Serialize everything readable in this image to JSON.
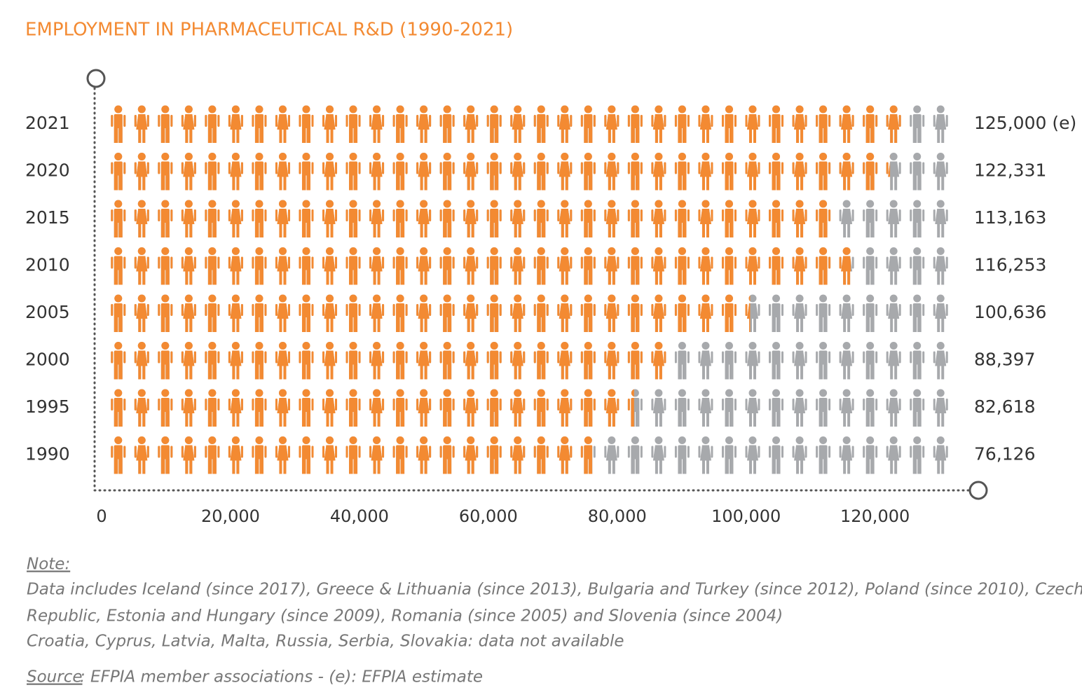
{
  "chart_data": {
    "type": "pictogram",
    "title": "EMPLOYMENT IN PHARMACEUTICAL R&D (1990-2021)",
    "categories": [
      "2021",
      "2020",
      "2015",
      "2010",
      "2005",
      "2000",
      "1995",
      "1990"
    ],
    "values": [
      125000,
      122331,
      113163,
      116253,
      100636,
      88397,
      82618,
      76126
    ],
    "value_labels": [
      "125,000 (e)",
      "122,331",
      "113,163",
      "116,253",
      "100,636",
      "88,397",
      "82,618",
      "76,126"
    ],
    "color": "#f38a32",
    "background_color": "#a7a9ac",
    "xlim": [
      0,
      132000
    ],
    "xticks": [
      0,
      {
        "value": 20000,
        "label": "20,000"
      },
      {
        "value": 40000,
        "label": "40,000"
      },
      {
        "value": 60000,
        "label": "60,000"
      },
      {
        "value": 80000,
        "label": "80,000"
      },
      {
        "value": 100000,
        "label": "100,000"
      },
      {
        "value": 120000,
        "label": "120,000"
      }
    ],
    "note_label": "Note:",
    "notes": [
      "Data includes Iceland (since 2017), Greece & Lithuania (since 2013), Bulgaria and Turkey (since 2012), Poland (since 2010), Czech",
      "Republic, Estonia and Hungary (since 2009), Romania (since 2005) and Slovenia (since 2004)",
      "Croatia, Cyprus, Latvia, Malta, Russia, Serbia, Slovakia: data not available"
    ],
    "source_label": "Source",
    "source_text": ": EFPIA member associations - (e): EFPIA estimate"
  }
}
